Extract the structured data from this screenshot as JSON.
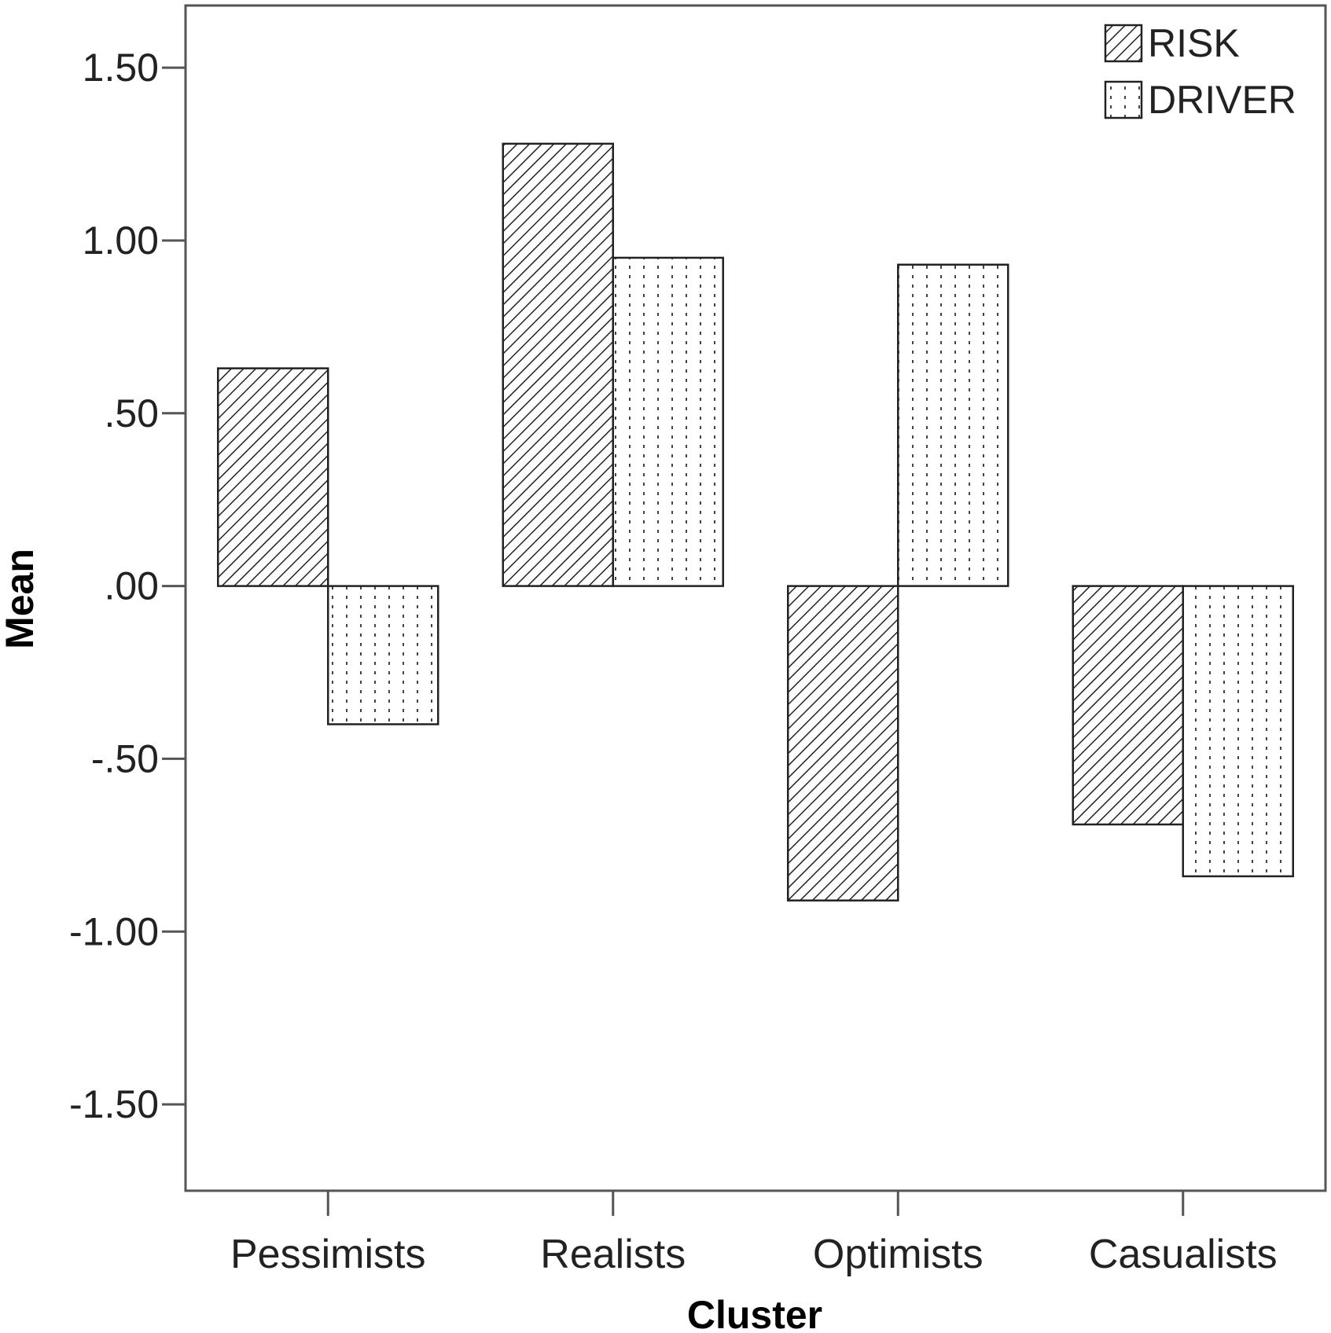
{
  "chart_data": {
    "type": "bar",
    "categories": [
      "Pessimists",
      "Realists",
      "Optimists",
      "Casualists"
    ],
    "series": [
      {
        "name": "RISK",
        "values": [
          0.63,
          1.28,
          -0.91,
          -0.69
        ],
        "pattern": "diagonal-hatch"
      },
      {
        "name": "DRIVER",
        "values": [
          -0.4,
          0.95,
          0.93,
          -0.84
        ],
        "pattern": "dotted"
      }
    ],
    "title": "",
    "xlabel": "Cluster",
    "ylabel": "Mean",
    "ylim": [
      -1.75,
      1.68
    ],
    "yticks": [
      1.5,
      1.0,
      0.5,
      0.0,
      -0.5,
      -1.0,
      -1.5
    ],
    "ytick_labels": [
      "1.50",
      "1.00",
      ".50",
      ".00",
      "-.50",
      "-1.00",
      "-1.50"
    ],
    "grid": false,
    "legend_position": "top-right",
    "colors": {
      "stroke": "#222222",
      "background": "#ffffff"
    }
  }
}
